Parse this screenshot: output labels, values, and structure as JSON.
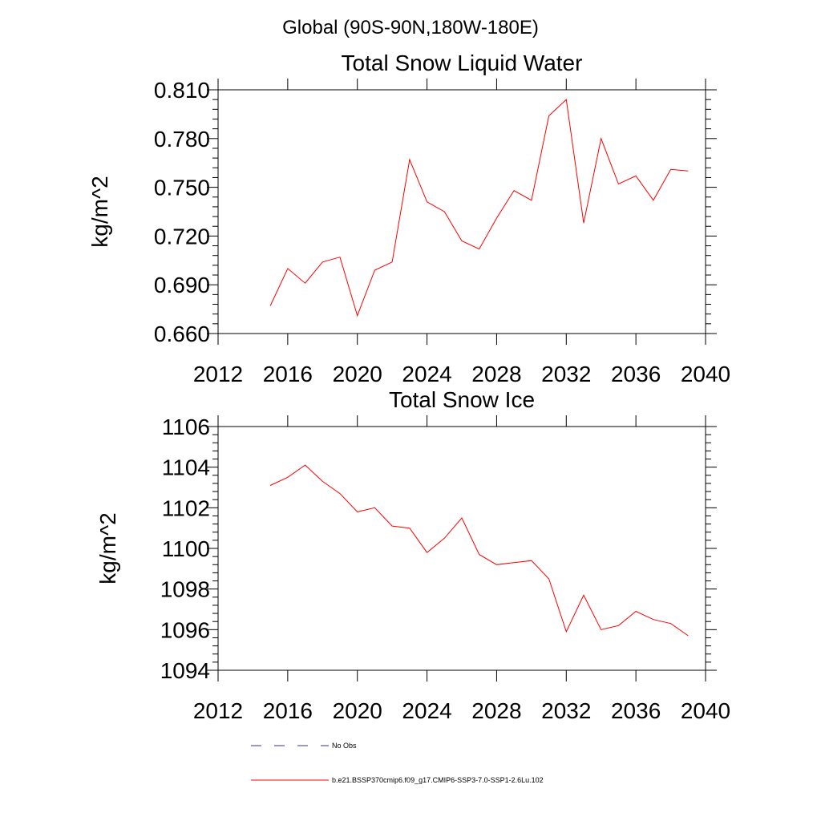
{
  "figure": {
    "suptitle": "Global (90S-90N,180W-180E)"
  },
  "legend": {
    "entries": [
      {
        "label": "No Obs",
        "color": "#333399",
        "style": "dashed"
      },
      {
        "label": "b.e21.BSSP370cmip6.f09_g17.CMIP6-SSP3-7.0-SSP1-2.6Lu.102",
        "color": "#ff0000",
        "style": "solid"
      }
    ]
  },
  "chart_data": [
    {
      "type": "line",
      "title": "Total Snow Liquid Water",
      "xlabel": "",
      "ylabel": "kg/m^2",
      "xlim": [
        2012,
        2040
      ],
      "ylim": [
        0.66,
        0.81
      ],
      "xticks": [
        2012,
        2016,
        2020,
        2024,
        2028,
        2032,
        2036,
        2040
      ],
      "xtick_labels": [
        "2012",
        "2016",
        "2020",
        "2024",
        "2028",
        "2032",
        "2036",
        "2040"
      ],
      "yticks": [
        0.66,
        0.69,
        0.72,
        0.75,
        0.78,
        0.81
      ],
      "ytick_labels": [
        "0.660",
        "0.690",
        "0.720",
        "0.750",
        "0.780",
        "0.810"
      ],
      "series": [
        {
          "name": "b.e21.BSSP370cmip6.f09_g17.CMIP6-SSP3-7.0-SSP1-2.6Lu.102",
          "color": "#ff0000",
          "x": [
            2015,
            2016,
            2017,
            2018,
            2019,
            2020,
            2021,
            2022,
            2023,
            2024,
            2025,
            2026,
            2027,
            2028,
            2029,
            2030,
            2031,
            2032,
            2033,
            2034,
            2035,
            2036,
            2037,
            2038,
            2039
          ],
          "y": [
            0.677,
            0.7,
            0.691,
            0.704,
            0.707,
            0.671,
            0.699,
            0.704,
            0.767,
            0.741,
            0.735,
            0.717,
            0.712,
            0.731,
            0.748,
            0.742,
            0.794,
            0.804,
            0.728,
            0.78,
            0.752,
            0.757,
            0.742,
            0.761,
            0.76
          ]
        }
      ]
    },
    {
      "type": "line",
      "title": "Total Snow Ice",
      "xlabel": "",
      "ylabel": "kg/m^2",
      "xlim": [
        2012,
        2040
      ],
      "ylim": [
        1094,
        1106
      ],
      "xticks": [
        2012,
        2016,
        2020,
        2024,
        2028,
        2032,
        2036,
        2040
      ],
      "xtick_labels": [
        "2012",
        "2016",
        "2020",
        "2024",
        "2028",
        "2032",
        "2036",
        "2040"
      ],
      "yticks": [
        1094,
        1096,
        1098,
        1100,
        1102,
        1104,
        1106
      ],
      "ytick_labels": [
        "1094",
        "1096",
        "1098",
        "1100",
        "1102",
        "1104",
        "1106"
      ],
      "series": [
        {
          "name": "b.e21.BSSP370cmip6.f09_g17.CMIP6-SSP3-7.0-SSP1-2.6Lu.102",
          "color": "#ff0000",
          "x": [
            2015,
            2016,
            2017,
            2018,
            2019,
            2020,
            2021,
            2022,
            2023,
            2024,
            2025,
            2026,
            2027,
            2028,
            2029,
            2030,
            2031,
            2032,
            2033,
            2034,
            2035,
            2036,
            2037,
            2038,
            2039
          ],
          "y": [
            1103.1,
            1103.5,
            1104.1,
            1103.3,
            1102.7,
            1101.8,
            1102.0,
            1101.1,
            1101.0,
            1099.8,
            1100.5,
            1101.5,
            1099.7,
            1099.2,
            1099.3,
            1099.4,
            1098.5,
            1095.9,
            1097.7,
            1096.0,
            1096.2,
            1096.9,
            1096.5,
            1096.3,
            1095.7
          ]
        }
      ]
    }
  ]
}
